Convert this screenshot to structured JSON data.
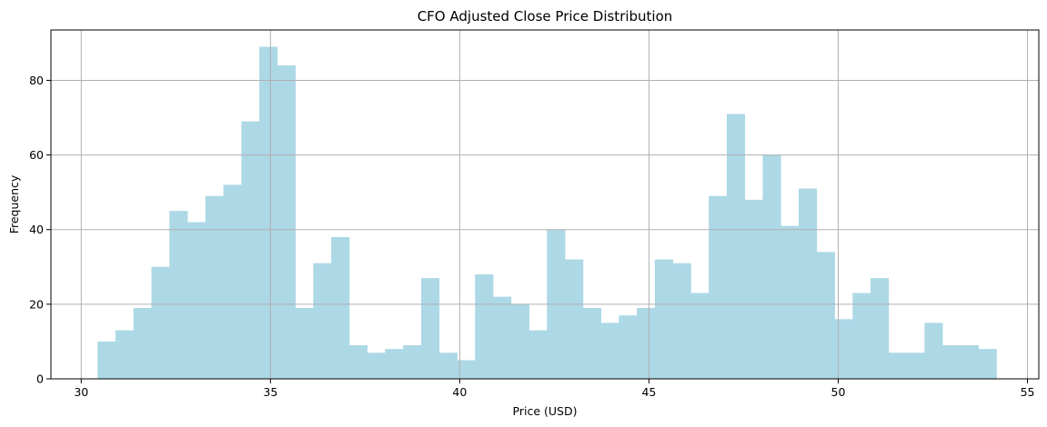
{
  "chart_data": {
    "type": "bar",
    "title": "CFO Adjusted Close Price Distribution",
    "xlabel": "Price (USD)",
    "ylabel": "Frequency",
    "xlim": [
      29.2,
      55.3
    ],
    "ylim": [
      0,
      93.5
    ],
    "xticks": [
      30,
      35,
      40,
      45,
      50,
      55
    ],
    "yticks": [
      0,
      20,
      40,
      60,
      80
    ],
    "grid": true,
    "bar_color": "#add8e6",
    "bin_start": 30.43,
    "bin_width": 0.475,
    "values": [
      10,
      13,
      19,
      30,
      45,
      42,
      49,
      52,
      69,
      89,
      84,
      19,
      31,
      38,
      9,
      7,
      8,
      9,
      27,
      7,
      5,
      28,
      22,
      20,
      13,
      40,
      32,
      19,
      15,
      17,
      19,
      32,
      31,
      23,
      49,
      71,
      48,
      60,
      41,
      51,
      34,
      16,
      23,
      27,
      7,
      7,
      15,
      9,
      9,
      8
    ]
  }
}
